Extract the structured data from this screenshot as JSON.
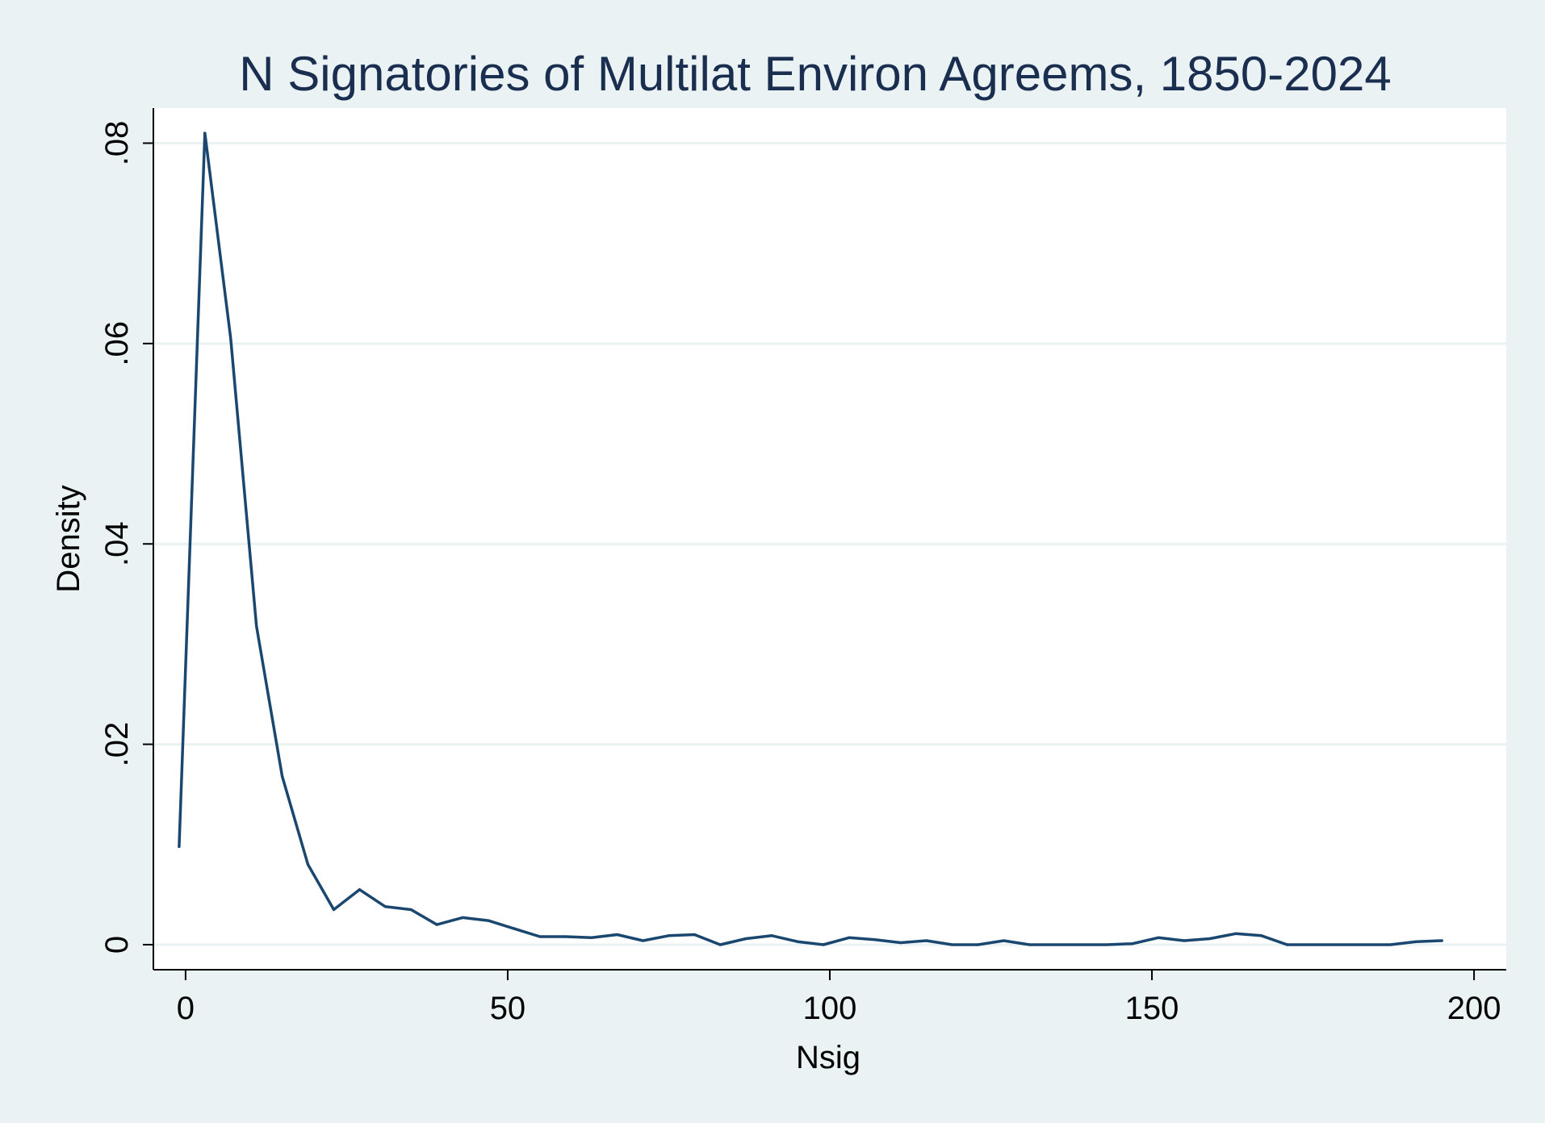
{
  "chart_data": {
    "type": "line",
    "title": "N Signatories of Multilat Environ Agreems, 1850-2024",
    "xlabel": "Nsig",
    "ylabel": "Density",
    "xlim": [
      -5,
      205
    ],
    "ylim": [
      -0.0025,
      0.0835
    ],
    "x_ticks": [
      0,
      50,
      100,
      150,
      200
    ],
    "x_tick_labels": [
      "0",
      "50",
      "100",
      "150",
      "200"
    ],
    "y_ticks": [
      0,
      0.02,
      0.04,
      0.06,
      0.08
    ],
    "y_tick_labels": [
      "0",
      ".02",
      ".04",
      ".06",
      ".08"
    ],
    "grid": true,
    "colors": {
      "background": "#eaf2f3",
      "plot_area": "#ffffff",
      "grid": "#eaf2f3",
      "line": "#1a476f",
      "title": "#1a2e4f"
    },
    "series": [
      {
        "x": [
          -1,
          3,
          7,
          11,
          15,
          19,
          23,
          27,
          31,
          35,
          39,
          43,
          47,
          51,
          55,
          59,
          63,
          67,
          71,
          75,
          79,
          83,
          87,
          91,
          95,
          99,
          103,
          107,
          111,
          115,
          119,
          123,
          127,
          131,
          135,
          139,
          143,
          147,
          151,
          155,
          159,
          163,
          167,
          171,
          175,
          179,
          183,
          187,
          191,
          195
        ],
        "y": [
          0.0098,
          0.081,
          0.0605,
          0.0318,
          0.0168,
          0.008,
          0.0035,
          0.0055,
          0.0038,
          0.0035,
          0.002,
          0.0027,
          0.0024,
          0.0016,
          0.0008,
          0.0008,
          0.0007,
          0.001,
          0.0004,
          0.0009,
          0.001,
          0.0,
          0.0006,
          0.0009,
          0.0003,
          0.0,
          0.0007,
          0.0005,
          0.0002,
          0.0004,
          0.0,
          0.0,
          0.0004,
          0.0,
          0.0,
          0.0,
          0.0,
          0.0001,
          0.0007,
          0.0004,
          0.0006,
          0.0011,
          0.0009,
          0.0,
          0.0,
          0.0,
          0.0,
          0.0,
          0.0003,
          0.0004
        ]
      }
    ]
  }
}
